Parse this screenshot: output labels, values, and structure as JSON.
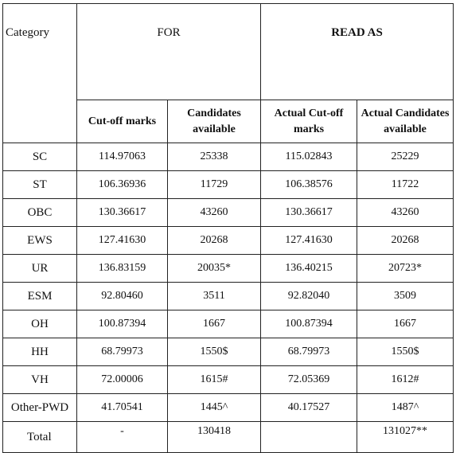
{
  "header": {
    "category": "Category",
    "for": "FOR",
    "read_as": "READ AS",
    "cutoff": "Cut-off marks",
    "candidates": "Candidates available",
    "actual_cutoff": "Actual Cut-off marks",
    "actual_candidates": "Actual Candidates available"
  },
  "rows": [
    {
      "category": "SC",
      "cutoff": "114.97063",
      "candidates": "25338",
      "actual_cutoff": "115.02843",
      "actual_candidates": "25229"
    },
    {
      "category": "ST",
      "cutoff": "106.36936",
      "candidates": "11729",
      "actual_cutoff": "106.38576",
      "actual_candidates": "11722"
    },
    {
      "category": "OBC",
      "cutoff": "130.36617",
      "candidates": "43260",
      "actual_cutoff": "130.36617",
      "actual_candidates": "43260"
    },
    {
      "category": "EWS",
      "cutoff": "127.41630",
      "candidates": "20268",
      "actual_cutoff": "127.41630",
      "actual_candidates": "20268"
    },
    {
      "category": "UR",
      "cutoff": "136.83159",
      "candidates": "20035*",
      "actual_cutoff": "136.40215",
      "actual_candidates": "20723*"
    },
    {
      "category": "ESM",
      "cutoff": "92.80460",
      "candidates": "3511",
      "actual_cutoff": "92.82040",
      "actual_candidates": "3509"
    },
    {
      "category": "OH",
      "cutoff": "100.87394",
      "candidates": "1667",
      "actual_cutoff": "100.87394",
      "actual_candidates": "1667"
    },
    {
      "category": "HH",
      "cutoff": "68.79973",
      "candidates": "1550$",
      "actual_cutoff": "68.79973",
      "actual_candidates": "1550$"
    },
    {
      "category": "VH",
      "cutoff": "72.00006",
      "candidates": "1615#",
      "actual_cutoff": "72.05369",
      "actual_candidates": "1612#"
    },
    {
      "category": "Other-PWD",
      "cutoff": "41.70541",
      "candidates": "1445^",
      "actual_cutoff": "40.17527",
      "actual_candidates": "1487^"
    }
  ],
  "total": {
    "category": "Total",
    "cutoff": "-",
    "candidates": "130418",
    "actual_cutoff": "",
    "actual_candidates": "131027**"
  }
}
